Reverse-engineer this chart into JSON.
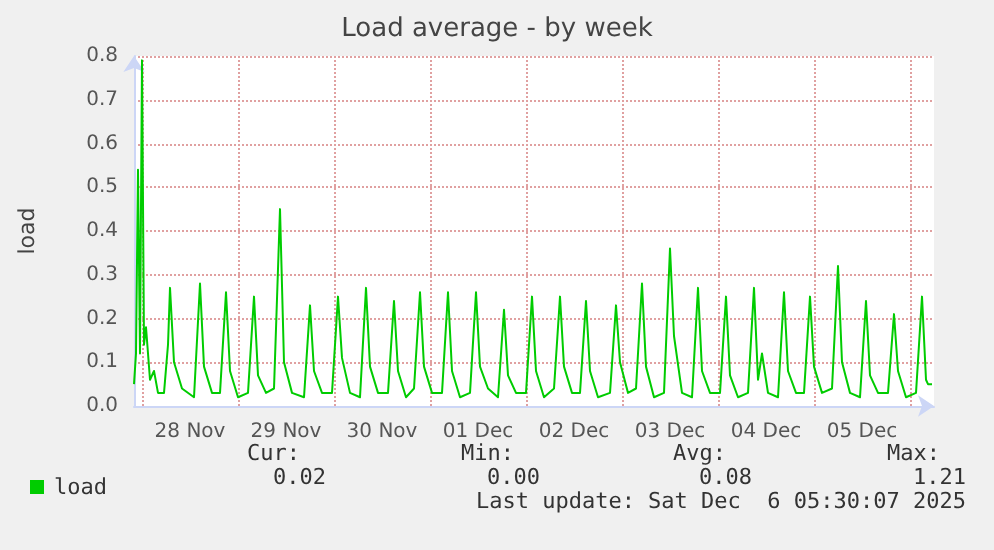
{
  "chart_data": {
    "type": "line",
    "title": "Load average - by week",
    "ylabel": "load",
    "xlim": [
      "2025-11-27T22:00",
      "2025-12-06T06:00"
    ],
    "xticks": [
      {
        "value": "2025-11-28T12:00",
        "label": "28 Nov"
      },
      {
        "value": "2025-11-29T12:00",
        "label": "29 Nov"
      },
      {
        "value": "2025-11-30T12:00",
        "label": "30 Nov"
      },
      {
        "value": "2025-12-01T12:00",
        "label": "01 Dec"
      },
      {
        "value": "2025-12-02T12:00",
        "label": "02 Dec"
      },
      {
        "value": "2025-12-03T12:00",
        "label": "03 Dec"
      },
      {
        "value": "2025-12-04T12:00",
        "label": "04 Dec"
      },
      {
        "value": "2025-12-05T12:00",
        "label": "05 Dec"
      }
    ],
    "ylim": [
      0,
      0.8
    ],
    "yticks": [
      {
        "value": 0,
        "label": "0.0"
      },
      {
        "value": 0.1,
        "label": "0.1"
      },
      {
        "value": 0.2,
        "label": "0.2"
      },
      {
        "value": 0.3,
        "label": "0.3"
      },
      {
        "value": 0.4,
        "label": "0.4"
      },
      {
        "value": 0.5,
        "label": "0.5"
      },
      {
        "value": 0.6,
        "label": "0.6"
      },
      {
        "value": 0.7,
        "label": "0.7"
      },
      {
        "value": 0.8,
        "label": "0.8"
      }
    ],
    "grid": true,
    "legend": "bottom left",
    "marker": "none",
    "line_style": "solid",
    "annotations": [
      "Cur:",
      "0.02",
      "Min:",
      "0.00",
      "Avg:",
      "0.08",
      "Max:",
      "1.21",
      "Last update: Sat Dec  6 05:30:07 2025"
    ],
    "series": [
      {
        "name": "load",
        "color": "#00cc00",
        "x": [
          "2025-11-27T22:00",
          "2025-11-27T22:30",
          "2025-11-27T23:00",
          "2025-11-27T23:30",
          "2025-11-28T00:00",
          "2025-11-28T00:30",
          "2025-11-28T01:00",
          "2025-11-28T02:00",
          "2025-11-28T03:00",
          "2025-11-28T04:00",
          "2025-11-28T05:30",
          "2025-11-28T06:30",
          "2025-11-28T07:00",
          "2025-11-28T08:00",
          "2025-11-28T10:00",
          "2025-11-28T13:00",
          "2025-11-28T14:30",
          "2025-11-28T15:30",
          "2025-11-28T17:30",
          "2025-11-28T19:30",
          "2025-11-28T21:00",
          "2025-11-28T22:00",
          "2025-11-29T00:00",
          "2025-11-29T02:30",
          "2025-11-29T04:00",
          "2025-11-29T05:00",
          "2025-11-29T07:00",
          "2025-11-29T09:00",
          "2025-11-29T10:30",
          "2025-11-29T11:30",
          "2025-11-29T13:30",
          "2025-11-29T16:30",
          "2025-11-29T18:00",
          "2025-11-29T19:00",
          "2025-11-29T21:00",
          "2025-11-29T23:30",
          "2025-11-30T01:00",
          "2025-11-30T02:00",
          "2025-11-30T04:00",
          "2025-11-30T06:30",
          "2025-11-30T08:00",
          "2025-11-30T09:00",
          "2025-11-30T11:00",
          "2025-11-30T13:30",
          "2025-11-30T15:00",
          "2025-11-30T16:00",
          "2025-11-30T18:00",
          "2025-11-30T20:00",
          "2025-11-30T21:30",
          "2025-11-30T22:30",
          "2025-12-01T00:30",
          "2025-12-01T03:00",
          "2025-12-01T04:30",
          "2025-12-01T05:30",
          "2025-12-01T07:30",
          "2025-12-01T10:00",
          "2025-12-01T11:30",
          "2025-12-01T12:30",
          "2025-12-01T14:30",
          "2025-12-01T17:00",
          "2025-12-01T18:30",
          "2025-12-01T19:30",
          "2025-12-01T21:30",
          "2025-12-02T00:00",
          "2025-12-02T01:30",
          "2025-12-02T02:30",
          "2025-12-02T04:30",
          "2025-12-02T07:00",
          "2025-12-02T08:30",
          "2025-12-02T09:30",
          "2025-12-02T11:30",
          "2025-12-02T13:30",
          "2025-12-02T15:00",
          "2025-12-02T16:00",
          "2025-12-02T18:00",
          "2025-12-02T21:00",
          "2025-12-02T22:30",
          "2025-12-02T23:30",
          "2025-12-03T01:30",
          "2025-12-03T03:30",
          "2025-12-03T05:00",
          "2025-12-03T06:00",
          "2025-12-03T08:00",
          "2025-12-03T10:30",
          "2025-12-03T12:00",
          "2025-12-03T13:00",
          "2025-12-03T15:00",
          "2025-12-03T17:30",
          "2025-12-03T19:00",
          "2025-12-03T20:00",
          "2025-12-03T22:00",
          "2025-12-04T00:30",
          "2025-12-04T02:00",
          "2025-12-04T03:00",
          "2025-12-04T05:00",
          "2025-12-04T07:30",
          "2025-12-04T09:00",
          "2025-12-04T10:00",
          "2025-12-04T11:00",
          "2025-12-04T12:30",
          "2025-12-04T15:00",
          "2025-12-04T16:30",
          "2025-12-04T17:30",
          "2025-12-04T19:30",
          "2025-12-04T21:30",
          "2025-12-04T23:00",
          "2025-12-05T00:00",
          "2025-12-05T02:00",
          "2025-12-05T04:30",
          "2025-12-05T06:00",
          "2025-12-05T07:00",
          "2025-12-05T09:00",
          "2025-12-05T11:30",
          "2025-12-05T13:00",
          "2025-12-05T14:00",
          "2025-12-05T16:00",
          "2025-12-05T18:30",
          "2025-12-05T20:00",
          "2025-12-05T21:00",
          "2025-12-05T23:00",
          "2025-12-06T01:30",
          "2025-12-06T03:00",
          "2025-12-06T04:00",
          "2025-12-06T04:30",
          "2025-12-06T05:30"
        ],
        "values": [
          0.05,
          0.12,
          0.54,
          0.12,
          0.79,
          0.14,
          0.18,
          0.06,
          0.08,
          0.03,
          0.03,
          0.14,
          0.27,
          0.1,
          0.04,
          0.02,
          0.28,
          0.09,
          0.03,
          0.03,
          0.26,
          0.08,
          0.02,
          0.03,
          0.25,
          0.07,
          0.03,
          0.04,
          0.45,
          0.1,
          0.03,
          0.02,
          0.23,
          0.08,
          0.03,
          0.03,
          0.25,
          0.11,
          0.03,
          0.02,
          0.27,
          0.09,
          0.03,
          0.03,
          0.24,
          0.08,
          0.02,
          0.04,
          0.26,
          0.09,
          0.03,
          0.03,
          0.26,
          0.08,
          0.02,
          0.03,
          0.26,
          0.09,
          0.04,
          0.02,
          0.22,
          0.07,
          0.03,
          0.03,
          0.25,
          0.08,
          0.02,
          0.04,
          0.25,
          0.09,
          0.03,
          0.03,
          0.24,
          0.08,
          0.02,
          0.03,
          0.23,
          0.1,
          0.03,
          0.04,
          0.28,
          0.09,
          0.02,
          0.03,
          0.36,
          0.16,
          0.03,
          0.02,
          0.27,
          0.08,
          0.03,
          0.03,
          0.25,
          0.07,
          0.02,
          0.03,
          0.27,
          0.06,
          0.12,
          0.03,
          0.02,
          0.26,
          0.08,
          0.03,
          0.03,
          0.25,
          0.09,
          0.03,
          0.04,
          0.32,
          0.1,
          0.03,
          0.02,
          0.24,
          0.07,
          0.03,
          0.03,
          0.21,
          0.08,
          0.02,
          0.03,
          0.25,
          0.06,
          0.05,
          0.05
        ]
      }
    ]
  }
}
